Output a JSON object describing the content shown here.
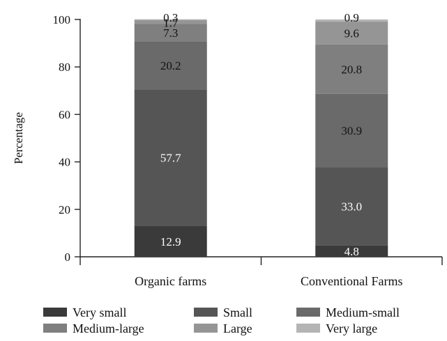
{
  "chart_data": {
    "type": "bar",
    "stacked": true,
    "title": "",
    "xlabel": "",
    "ylabel": "Percentage",
    "ylim": [
      0,
      100
    ],
    "yticks": [
      0,
      20,
      40,
      60,
      80,
      100
    ],
    "categories": [
      "Organic farms",
      "Conventional Farms"
    ],
    "series": [
      {
        "name": "Very small",
        "color": "#3a3a3a",
        "values": [
          12.9,
          4.8
        ],
        "labels": [
          "12.9",
          "4.8"
        ],
        "label_color": "#ffffff"
      },
      {
        "name": "Small",
        "color": "#555555",
        "values": [
          57.7,
          33.0
        ],
        "labels": [
          "57.7",
          "33.0"
        ],
        "label_color": "#ffffff"
      },
      {
        "name": "Medium-small",
        "color": "#6a6a6a",
        "values": [
          20.2,
          30.9
        ],
        "labels": [
          "20.2",
          "30.9"
        ],
        "label_color": "#111111"
      },
      {
        "name": "Medium-large",
        "color": "#7f7f7f",
        "values": [
          7.3,
          20.8
        ],
        "labels": [
          "7.3",
          "20.8"
        ],
        "label_color": "#111111"
      },
      {
        "name": "Large",
        "color": "#959595",
        "values": [
          1.7,
          9.6
        ],
        "labels": [
          "1.7",
          "9.6"
        ],
        "label_color": "#111111"
      },
      {
        "name": "Very large",
        "color": "#b4b4b4",
        "values": [
          0.3,
          0.9
        ],
        "labels": [
          "0.3",
          "0.9"
        ],
        "label_color": "#111111"
      }
    ],
    "legend_position": "bottom",
    "grid": false
  }
}
